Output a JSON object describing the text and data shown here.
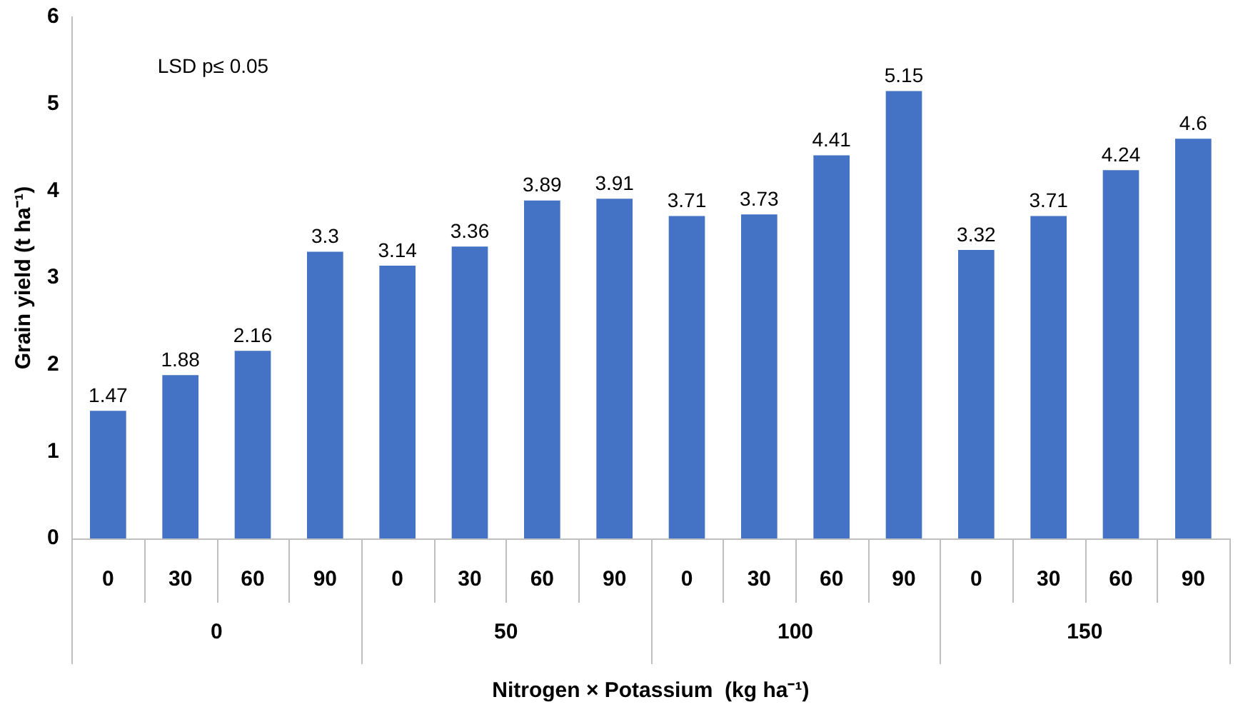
{
  "chart_data": {
    "type": "bar",
    "xlabel": "Nitrogen × Potassium  (kg ha⁻¹)",
    "ylabel": "Grain yield (t ha⁻¹)",
    "categories": [
      "0",
      "30",
      "60",
      "90",
      "0",
      "30",
      "60",
      "90",
      "0",
      "30",
      "60",
      "90",
      "0",
      "30",
      "60",
      "90"
    ],
    "values": [
      1.47,
      1.88,
      2.16,
      3.3,
      3.14,
      3.36,
      3.89,
      3.91,
      3.71,
      3.73,
      4.41,
      5.15,
      3.32,
      3.71,
      4.24,
      4.6
    ],
    "color": "#4472c4",
    "ylim": [
      0,
      6
    ],
    "yticks": [
      0,
      1,
      2,
      3,
      4,
      5,
      6
    ],
    "grid": false,
    "legend": false,
    "data_labels": true,
    "annotations": [
      "LSD p≤ 0.05",
      "0",
      "50",
      "100",
      "150"
    ]
  }
}
